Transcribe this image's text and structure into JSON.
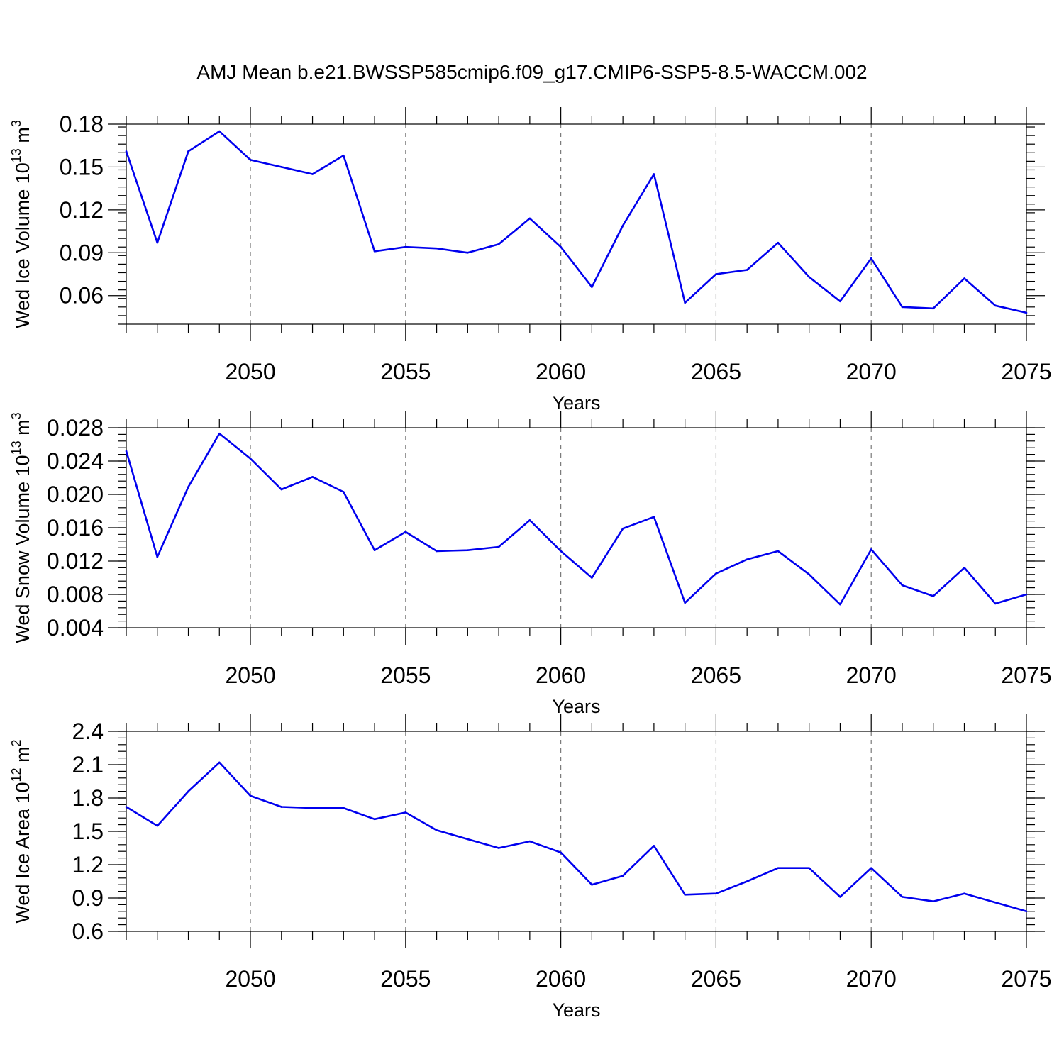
{
  "title": "AMJ Mean b.e21.BWSSP585cmip6.f09_g17.CMIP6-SSP5-8.5-WACCM.002",
  "colors": {
    "line": "#0000ee",
    "grid": "#7a7a7a"
  },
  "chart_data": [
    {
      "type": "line",
      "ylabel_main": "Wed Ice Volume 10",
      "ylabel_sup": "13",
      "ylabel_unit": " m",
      "ylabel_unit_sup": "3",
      "xlabel": "Years",
      "xlim": [
        2046,
        2075
      ],
      "ylim": [
        0.04,
        0.18
      ],
      "yticks": [
        "0.06",
        "0.09",
        "0.12",
        "0.15",
        "0.18"
      ],
      "xticks": [
        "2050",
        "2055",
        "2060",
        "2065",
        "2070",
        "2075"
      ],
      "grid_x": true,
      "x": [
        2046,
        2047,
        2048,
        2049,
        2050,
        2051,
        2052,
        2053,
        2054,
        2055,
        2056,
        2057,
        2058,
        2059,
        2060,
        2061,
        2062,
        2063,
        2064,
        2065,
        2066,
        2067,
        2068,
        2069,
        2070,
        2071,
        2072,
        2073,
        2074,
        2075
      ],
      "values": [
        0.161,
        0.097,
        0.161,
        0.175,
        0.155,
        0.15,
        0.145,
        0.158,
        0.091,
        0.094,
        0.093,
        0.09,
        0.096,
        0.114,
        0.094,
        0.066,
        0.109,
        0.145,
        0.055,
        0.075,
        0.078,
        0.097,
        0.073,
        0.056,
        0.086,
        0.052,
        0.051,
        0.072,
        0.053,
        0.048
      ]
    },
    {
      "type": "line",
      "ylabel_main": "Wed Snow Volume 10",
      "ylabel_sup": "13",
      "ylabel_unit": " m",
      "ylabel_unit_sup": "3",
      "xlabel": "Years",
      "xlim": [
        2046,
        2075
      ],
      "ylim": [
        0.004,
        0.028
      ],
      "yticks": [
        "0.004",
        "0.008",
        "0.012",
        "0.016",
        "0.020",
        "0.024",
        "0.028"
      ],
      "xticks": [
        "2050",
        "2055",
        "2060",
        "2065",
        "2070",
        "2075"
      ],
      "grid_x": true,
      "x": [
        2046,
        2047,
        2048,
        2049,
        2050,
        2051,
        2052,
        2053,
        2054,
        2055,
        2056,
        2057,
        2058,
        2059,
        2060,
        2061,
        2062,
        2063,
        2064,
        2065,
        2066,
        2067,
        2068,
        2069,
        2070,
        2071,
        2072,
        2073,
        2074,
        2075
      ],
      "values": [
        0.0252,
        0.0125,
        0.0209,
        0.0273,
        0.0243,
        0.0206,
        0.0221,
        0.0203,
        0.0133,
        0.0155,
        0.0132,
        0.0133,
        0.0137,
        0.0169,
        0.0132,
        0.01,
        0.0159,
        0.0173,
        0.007,
        0.0105,
        0.0122,
        0.0132,
        0.0104,
        0.0068,
        0.0134,
        0.0091,
        0.0078,
        0.0112,
        0.0069,
        0.008
      ]
    },
    {
      "type": "line",
      "ylabel_main": "Wed Ice Area 10",
      "ylabel_sup": "12",
      "ylabel_unit": " m",
      "ylabel_unit_sup": "2",
      "xlabel": "Years",
      "xlim": [
        2046,
        2075
      ],
      "ylim": [
        0.6,
        2.4
      ],
      "yticks": [
        "0.6",
        "0.9",
        "1.2",
        "1.5",
        "1.8",
        "2.1",
        "2.4"
      ],
      "xticks": [
        "2050",
        "2055",
        "2060",
        "2065",
        "2070",
        "2075"
      ],
      "grid_x": true,
      "x": [
        2046,
        2047,
        2048,
        2049,
        2050,
        2051,
        2052,
        2053,
        2054,
        2055,
        2056,
        2057,
        2058,
        2059,
        2060,
        2061,
        2062,
        2063,
        2064,
        2065,
        2066,
        2067,
        2068,
        2069,
        2070,
        2071,
        2072,
        2073,
        2074,
        2075
      ],
      "values": [
        1.72,
        1.55,
        1.86,
        2.12,
        1.82,
        1.72,
        1.71,
        1.71,
        1.61,
        1.67,
        1.51,
        1.43,
        1.35,
        1.41,
        1.31,
        1.02,
        1.1,
        1.37,
        0.93,
        0.94,
        1.05,
        1.17,
        1.17,
        0.91,
        1.17,
        0.91,
        0.87,
        0.94,
        0.86,
        0.78
      ]
    }
  ]
}
